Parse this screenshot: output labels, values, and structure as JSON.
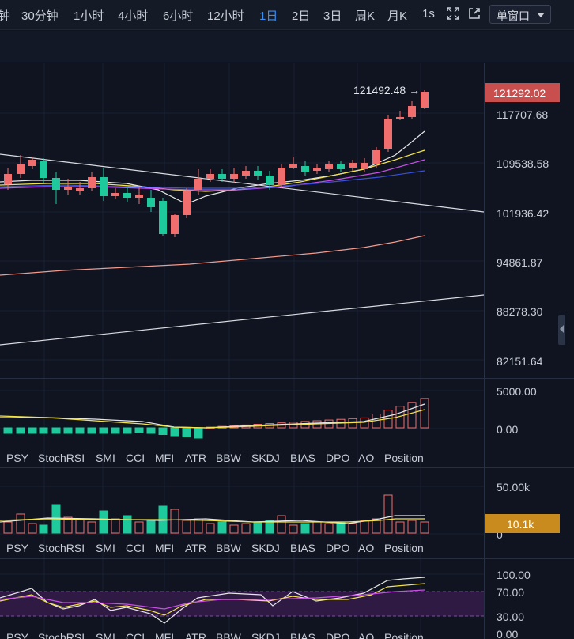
{
  "toolbar": {
    "timeframes": [
      "钟",
      "30分钟",
      "1小时",
      "4小时",
      "6小时",
      "12小时",
      "1日",
      "2日",
      "3日",
      "周K",
      "月K",
      "1s"
    ],
    "active": "1日",
    "window_mode": "单窗口"
  },
  "price_axis": {
    "labels": [
      "117707.68",
      "109538.58",
      "101936.42",
      "94861.87",
      "88278.30",
      "82151.64"
    ],
    "current_price": "121292.02",
    "last_high_label": "121492.48",
    "last_high_arrow": "→"
  },
  "macd_axis": {
    "labels": [
      "5000.00",
      "0.00"
    ]
  },
  "volume_axis": {
    "labels": [
      "50.00k",
      "0"
    ],
    "current": "10.1k"
  },
  "rsi_axis": {
    "labels": [
      "100.00",
      "70.00",
      "30.00",
      "0.00"
    ]
  },
  "indicator_tabs": [
    "PSY",
    "StochRSI",
    "SMI",
    "CCI",
    "MFI",
    "ATR",
    "BBW",
    "SKDJ",
    "BIAS",
    "DPO",
    "AO",
    "Position"
  ],
  "colors": {
    "up": "#f06e6e",
    "down": "#1ec99b",
    "ma_white": "#e6e6e6",
    "ma_yellow": "#f2e34a",
    "ma_purple": "#c84fe6",
    "ma_blue": "#3a50d9",
    "ma_salmon": "#f29a8c",
    "trend_white": "#d9dbe0",
    "rsi_band": "#3a1d4f"
  }
}
